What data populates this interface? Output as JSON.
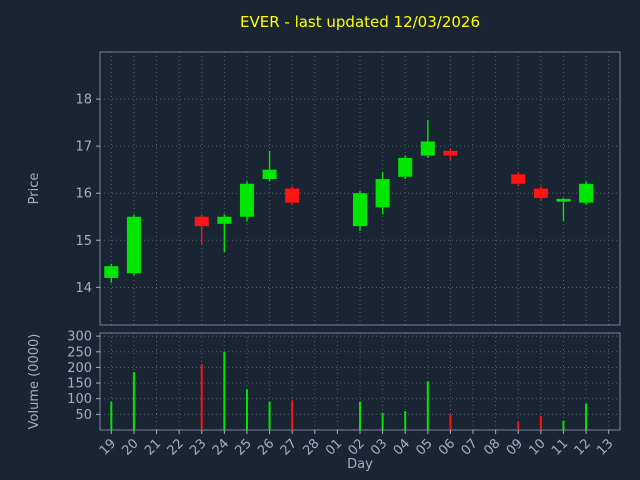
{
  "colors": {
    "background": "#1a2533",
    "title": "#ffff00",
    "text": "#9fb1c5",
    "grid": "#566170",
    "spine": "#76859a",
    "up": "#00e600",
    "down": "#ff1414"
  },
  "chart_data": {
    "type": "candlestick",
    "title": "EVER - last updated 12/03/2026",
    "xlabel": "Day",
    "ylabel": "Price",
    "volume_ylabel": "Volume (0000)",
    "grid": "dotted",
    "legend_position": "none",
    "categories": [
      "19",
      "20",
      "21",
      "22",
      "23",
      "24",
      "25",
      "26",
      "27",
      "28",
      "01",
      "02",
      "03",
      "04",
      "05",
      "06",
      "07",
      "08",
      "09",
      "10",
      "11",
      "12",
      "13"
    ],
    "price_ticks": [
      14,
      15,
      16,
      17,
      18
    ],
    "price_ylim": [
      13.2,
      19.0
    ],
    "volume_ticks": [
      50,
      100,
      150,
      200,
      250,
      300
    ],
    "volume_ylim": [
      0,
      310
    ],
    "candles": [
      {
        "day": "19",
        "open": 14.2,
        "high": 14.5,
        "low": 14.1,
        "close": 14.45,
        "direction": "up"
      },
      {
        "day": "20",
        "open": 14.3,
        "high": 15.55,
        "low": 14.25,
        "close": 15.5,
        "direction": "up"
      },
      {
        "day": "23",
        "open": 15.5,
        "high": 15.55,
        "low": 14.9,
        "close": 15.3,
        "direction": "down"
      },
      {
        "day": "24",
        "open": 15.35,
        "high": 15.55,
        "low": 14.75,
        "close": 15.5,
        "direction": "up"
      },
      {
        "day": "25",
        "open": 15.5,
        "high": 16.25,
        "low": 15.4,
        "close": 16.2,
        "direction": "up"
      },
      {
        "day": "26",
        "open": 16.3,
        "high": 16.9,
        "low": 16.25,
        "close": 16.5,
        "direction": "up"
      },
      {
        "day": "27",
        "open": 16.1,
        "high": 16.15,
        "low": 15.75,
        "close": 15.8,
        "direction": "down"
      },
      {
        "day": "02",
        "open": 15.3,
        "high": 16.05,
        "low": 15.2,
        "close": 16.0,
        "direction": "up"
      },
      {
        "day": "03",
        "open": 15.7,
        "high": 16.45,
        "low": 15.55,
        "close": 16.3,
        "direction": "up"
      },
      {
        "day": "04",
        "open": 16.35,
        "high": 16.8,
        "low": 16.3,
        "close": 16.75,
        "direction": "up"
      },
      {
        "day": "05",
        "open": 16.8,
        "high": 17.55,
        "low": 16.75,
        "close": 17.1,
        "direction": "up"
      },
      {
        "day": "06",
        "open": 16.9,
        "high": 16.95,
        "low": 16.7,
        "close": 16.8,
        "direction": "down"
      },
      {
        "day": "09",
        "open": 16.4,
        "high": 16.45,
        "low": 16.15,
        "close": 16.2,
        "direction": "down"
      },
      {
        "day": "10",
        "open": 16.1,
        "high": 16.15,
        "low": 15.85,
        "close": 15.9,
        "direction": "down"
      },
      {
        "day": "11",
        "open": 15.82,
        "high": 15.9,
        "low": 15.4,
        "close": 15.88,
        "direction": "up"
      },
      {
        "day": "12",
        "open": 15.8,
        "high": 16.25,
        "low": 15.75,
        "close": 16.2,
        "direction": "up"
      }
    ],
    "volumes": [
      {
        "day": "19",
        "value": 90,
        "direction": "up"
      },
      {
        "day": "20",
        "value": 185,
        "direction": "up"
      },
      {
        "day": "23",
        "value": 210,
        "direction": "down"
      },
      {
        "day": "24",
        "value": 250,
        "direction": "up"
      },
      {
        "day": "25",
        "value": 130,
        "direction": "up"
      },
      {
        "day": "26",
        "value": 90,
        "direction": "up"
      },
      {
        "day": "27",
        "value": 95,
        "direction": "down"
      },
      {
        "day": "02",
        "value": 90,
        "direction": "up"
      },
      {
        "day": "03",
        "value": 55,
        "direction": "up"
      },
      {
        "day": "04",
        "value": 60,
        "direction": "up"
      },
      {
        "day": "05",
        "value": 155,
        "direction": "up"
      },
      {
        "day": "06",
        "value": 50,
        "direction": "down"
      },
      {
        "day": "09",
        "value": 25,
        "direction": "down"
      },
      {
        "day": "10",
        "value": 45,
        "direction": "down"
      },
      {
        "day": "11",
        "value": 30,
        "direction": "up"
      },
      {
        "day": "12",
        "value": 85,
        "direction": "up"
      }
    ]
  }
}
